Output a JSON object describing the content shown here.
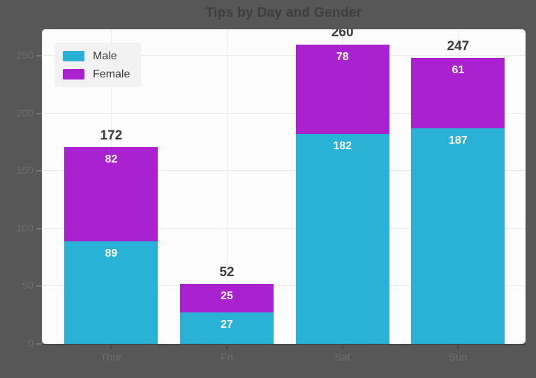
{
  "figure": {
    "background_color": "#575757",
    "plot_background_color": "#fdfdfd",
    "grid_color": "#ebebeb",
    "title_color": "#3e3e3e",
    "tick_label_color": "#6e6e6e",
    "total_label_color": "#3a3a3a",
    "segment_label_color": "#ffffff",
    "legend": {
      "background_color": "#f2f2f2",
      "text_color": "#3b3b3b"
    }
  },
  "chart_data": {
    "type": "bar",
    "stacked": true,
    "title": "Tips by Day and Gender",
    "categories": [
      "Thur",
      "Fri",
      "Sat",
      "Sun"
    ],
    "series": [
      {
        "name": "Male",
        "color": "#29b1d6",
        "values": [
          89,
          27,
          182,
          187
        ]
      },
      {
        "name": "Female",
        "color": "#aa22d0",
        "values": [
          82,
          25,
          78,
          61
        ]
      }
    ],
    "totals": [
      172,
      52,
      260,
      247
    ],
    "xlabel": "",
    "ylabel": "",
    "y_ticks": [
      0,
      50,
      100,
      150,
      200,
      250
    ],
    "ylim": [
      0,
      273
    ],
    "grid": true,
    "legend_position": "upper left"
  }
}
